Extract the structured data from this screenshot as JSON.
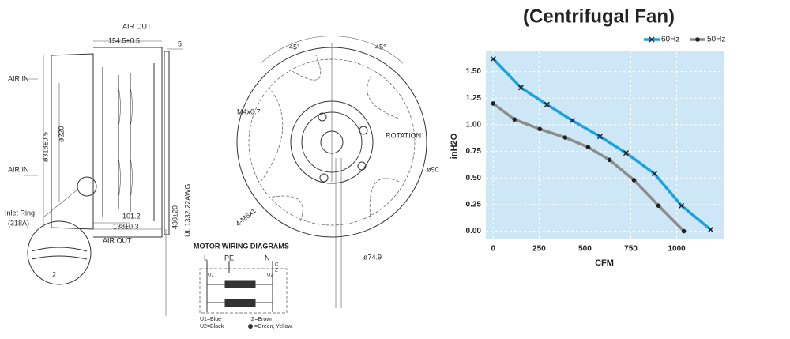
{
  "drawing": {
    "side": [
      "AIR OUT",
      "154.5±0.5",
      "5",
      "AIR IN",
      "ø318±0.5",
      "ø220",
      "AIR IN",
      "Inlet Ring",
      "(318A)",
      "101.2",
      "138±0.3",
      "AIR OUT",
      "2",
      "430±20",
      "UL 1332 22AWG"
    ],
    "front": [
      "45°",
      "45°",
      "M4x0.7",
      "ROTATION",
      "ø90",
      "4-M6x1",
      "ø74.9"
    ],
    "wiring": {
      "title": "MOTOR WIRING DIAGRAMS",
      "terminals": [
        "L",
        "PE",
        "N",
        "U1",
        "U2",
        "Z",
        "C"
      ],
      "legend": [
        "U1=Blue",
        "U2=Black",
        "Z=Brown",
        "=Green, Yellow."
      ]
    }
  },
  "chart_data": {
    "type": "line",
    "title": "(Centrifugal Fan)",
    "x_label": "CFM",
    "y_label": "inH2O",
    "series": [
      {
        "name": "60Hz",
        "color": "#1ba1e2",
        "marker": "x",
        "x": [
          0,
          151,
          293,
          431,
          582,
          724,
          879,
          1026,
          1185
        ],
        "values": [
          1.62,
          1.35,
          1.19,
          1.04,
          0.89,
          0.735,
          0.54,
          0.24,
          0.015
        ]
      },
      {
        "name": "50Hz",
        "color": "#8c8c8c",
        "marker": "o",
        "x": [
          0,
          116,
          254,
          392,
          517,
          634,
          767,
          901,
          1039
        ],
        "values": [
          1.2,
          1.05,
          0.96,
          0.88,
          0.79,
          0.67,
          0.48,
          0.24,
          0.0
        ]
      }
    ],
    "xlim": [
      -40,
      1260
    ],
    "ylim": [
      -0.07,
      1.69
    ],
    "xticks": [
      0,
      250,
      500,
      750,
      1000
    ],
    "yticks": [
      {
        "value": 0,
        "label": "0.00"
      },
      {
        "value": 0.25,
        "label": "0.25"
      },
      {
        "value": 0.5,
        "label": "0.50"
      },
      {
        "value": 0.75,
        "label": "0.75"
      },
      {
        "value": 1,
        "label": "1.00"
      },
      {
        "value": 1.25,
        "label": "1.25"
      },
      {
        "value": 1.5,
        "label": "1.50"
      }
    ],
    "grid": true,
    "legend": "upper right",
    "background": "#cde7f6"
  }
}
